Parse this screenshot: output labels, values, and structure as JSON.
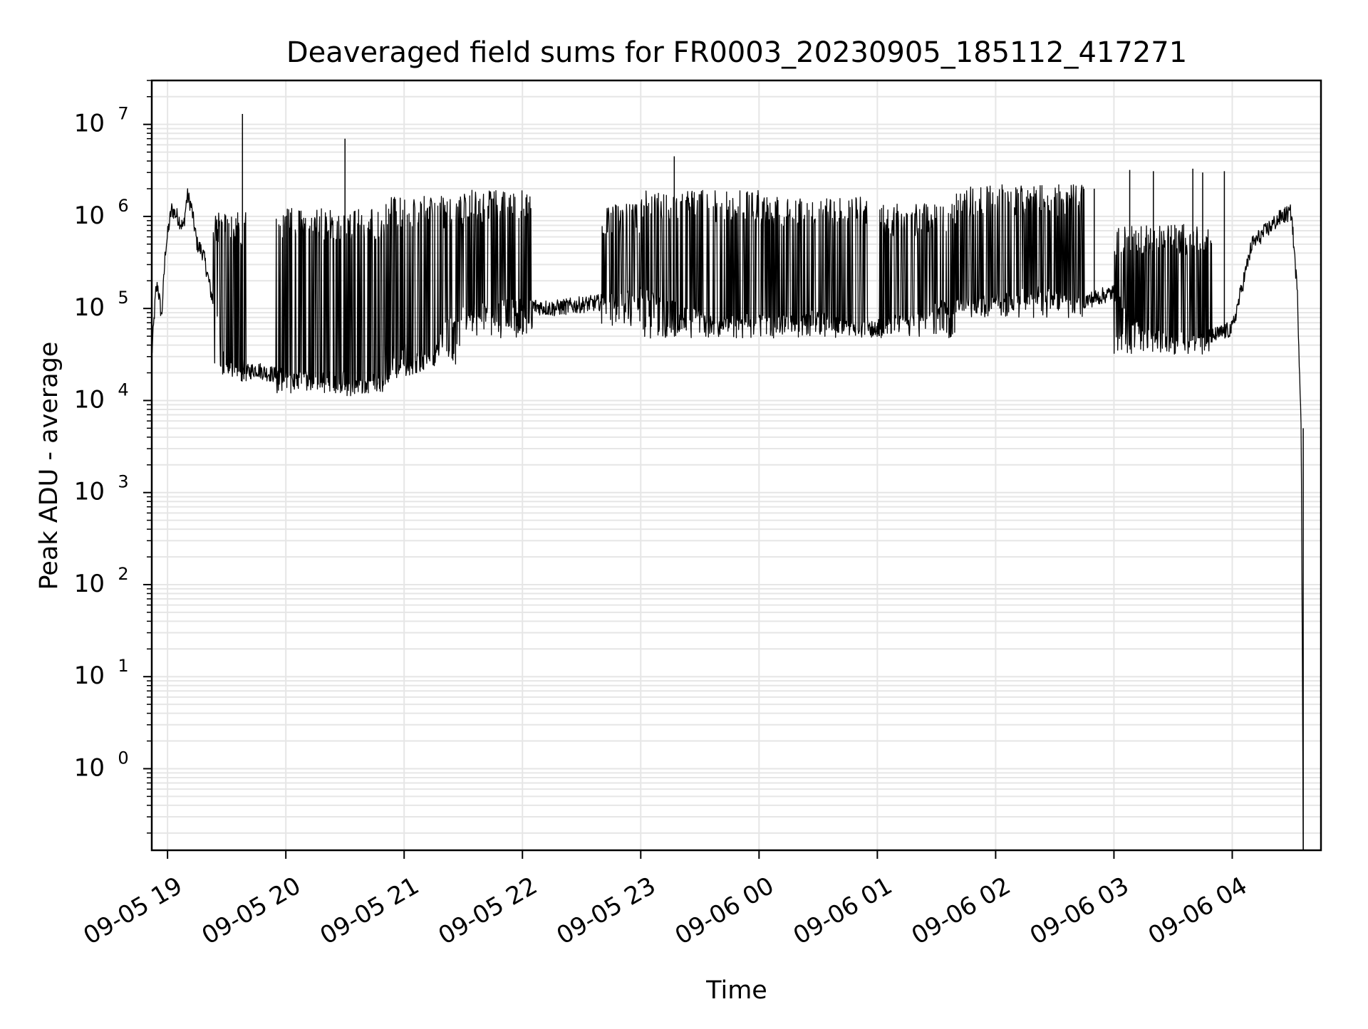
{
  "chart_data": {
    "type": "line",
    "title": "Deaveraged field sums for FR0003_20230905_185112_417271",
    "xlabel": "Time",
    "ylabel": "Peak ADU - average",
    "y_scale": "log",
    "ylim": [
      0.13,
      30000000
    ],
    "xlim": [
      "2023-09-05 18:52",
      "2023-09-06 04:45"
    ],
    "grid": true,
    "legend": "none",
    "colors": {
      "line": "#000000",
      "grid": "#e6e6e6",
      "axes": "#000000",
      "background": "#ffffff"
    },
    "x_ticks": [
      {
        "value": "2023-09-05 19:00",
        "label": "09-05 19"
      },
      {
        "value": "2023-09-05 20:00",
        "label": "09-05 20"
      },
      {
        "value": "2023-09-05 21:00",
        "label": "09-05 21"
      },
      {
        "value": "2023-09-05 22:00",
        "label": "09-05 22"
      },
      {
        "value": "2023-09-05 23:00",
        "label": "09-05 23"
      },
      {
        "value": "2023-09-06 00:00",
        "label": "09-06 00"
      },
      {
        "value": "2023-09-06 01:00",
        "label": "09-06 01"
      },
      {
        "value": "2023-09-06 02:00",
        "label": "09-06 02"
      },
      {
        "value": "2023-09-06 03:00",
        "label": "09-06 03"
      },
      {
        "value": "2023-09-06 04:00",
        "label": "09-06 04"
      }
    ],
    "y_ticks": [
      {
        "value": 1,
        "base": "10",
        "exp": "0"
      },
      {
        "value": 10,
        "base": "10",
        "exp": "1"
      },
      {
        "value": 100,
        "base": "10",
        "exp": "2"
      },
      {
        "value": 1000,
        "base": "10",
        "exp": "3"
      },
      {
        "value": 10000,
        "base": "10",
        "exp": "4"
      },
      {
        "value": 100000,
        "base": "10",
        "exp": "5"
      },
      {
        "value": 1000000,
        "base": "10",
        "exp": "6"
      },
      {
        "value": 10000000,
        "base": "10",
        "exp": "7"
      }
    ],
    "series": [
      {
        "x": [
          "2023-09-05 18:52",
          "2023-09-05 18:54",
          "2023-09-05 18:55",
          "2023-09-05 18:57",
          "2023-09-05 18:59",
          "2023-09-05 19:02",
          "2023-09-05 19:05",
          "2023-09-05 19:08",
          "2023-09-05 19:10",
          "2023-09-05 19:12",
          "2023-09-05 19:15",
          "2023-09-05 19:18",
          "2023-09-05 19:20",
          "2023-09-05 19:22",
          "2023-09-05 19:25",
          "2023-09-05 19:28",
          "2023-09-05 19:30",
          "2023-09-05 19:35",
          "2023-09-05 19:40",
          "2023-09-05 19:45",
          "2023-09-05 19:50",
          "2023-09-05 20:00",
          "2023-09-05 20:15",
          "2023-09-05 20:30",
          "2023-09-05 20:45",
          "2023-09-05 21:00",
          "2023-09-05 21:15",
          "2023-09-05 21:20",
          "2023-09-05 21:30",
          "2023-09-05 21:45",
          "2023-09-05 22:00",
          "2023-09-05 22:15",
          "2023-09-05 22:30",
          "2023-09-05 22:45",
          "2023-09-05 23:00",
          "2023-09-05 23:15",
          "2023-09-05 23:30",
          "2023-09-05 23:45",
          "2023-09-06 00:00",
          "2023-09-06 00:15",
          "2023-09-06 00:30",
          "2023-09-06 00:45",
          "2023-09-06 01:00",
          "2023-09-06 01:15",
          "2023-09-06 01:30",
          "2023-09-06 01:45",
          "2023-09-06 02:00",
          "2023-09-06 02:10",
          "2023-09-06 02:20",
          "2023-09-06 02:30",
          "2023-09-06 02:45",
          "2023-09-06 03:00",
          "2023-09-06 03:15",
          "2023-09-06 03:30",
          "2023-09-06 03:40",
          "2023-09-06 03:50",
          "2023-09-06 04:00",
          "2023-09-06 04:10",
          "2023-09-06 04:20",
          "2023-09-06 04:25",
          "2023-09-06 04:30",
          "2023-09-06 04:33",
          "2023-09-06 04:35",
          "2023-09-06 04:36"
        ],
        "y": [
          30000,
          150000,
          180000,
          80000,
          450000,
          1200000,
          1000000,
          750000,
          1700000,
          1300000,
          500000,
          400000,
          250000,
          150000,
          80000,
          40000,
          25000,
          18000,
          20000,
          22000,
          20000,
          18000,
          15000,
          13000,
          14000,
          22000,
          28000,
          60000,
          90000,
          100000,
          110000,
          100000,
          110000,
          120000,
          150000,
          100000,
          80000,
          70000,
          80000,
          70000,
          80000,
          60000,
          60000,
          70000,
          100000,
          110000,
          120000,
          130000,
          150000,
          130000,
          120000,
          150000,
          50000,
          50000,
          45000,
          50000,
          60000,
          500000,
          800000,
          1000000,
          1100000,
          150000,
          5000,
          0.13
        ]
      }
    ],
    "bands": [
      {
        "x_start": "2023-09-05 19:23",
        "x_end": "2023-09-05 19:40",
        "low": 20000,
        "high": 800000
      },
      {
        "x_start": "2023-09-05 19:55",
        "x_end": "2023-09-05 20:50",
        "low": 15000,
        "high": 900000
      },
      {
        "x_start": "2023-09-05 20:50",
        "x_end": "2023-09-05 21:30",
        "low": 30000,
        "high": 1200000
      },
      {
        "x_start": "2023-09-05 21:30",
        "x_end": "2023-09-05 22:05",
        "low": 60000,
        "high": 1400000
      },
      {
        "x_start": "2023-09-05 22:40",
        "x_end": "2023-09-05 23:00",
        "low": 80000,
        "high": 1000000
      },
      {
        "x_start": "2023-09-05 23:00",
        "x_end": "2023-09-06 00:00",
        "low": 60000,
        "high": 1400000
      },
      {
        "x_start": "2023-09-06 00:00",
        "x_end": "2023-09-06 00:55",
        "low": 60000,
        "high": 1200000
      },
      {
        "x_start": "2023-09-06 01:00",
        "x_end": "2023-09-06 01:40",
        "low": 60000,
        "high": 1000000
      },
      {
        "x_start": "2023-09-06 01:40",
        "x_end": "2023-09-06 02:45",
        "low": 100000,
        "high": 1600000
      },
      {
        "x_start": "2023-09-06 03:00",
        "x_end": "2023-09-06 03:50",
        "low": 40000,
        "high": 600000
      }
    ],
    "spikes": [
      {
        "x": "2023-09-05 19:38",
        "y": 13000000
      },
      {
        "x": "2023-09-05 20:30",
        "y": 7000000
      },
      {
        "x": "2023-09-05 23:17",
        "y": 4500000
      },
      {
        "x": "2023-09-06 02:50",
        "y": 2000000
      },
      {
        "x": "2023-09-06 03:08",
        "y": 3200000
      },
      {
        "x": "2023-09-06 03:20",
        "y": 3100000
      },
      {
        "x": "2023-09-06 03:40",
        "y": 3300000
      },
      {
        "x": "2023-09-06 03:45",
        "y": 3000000
      },
      {
        "x": "2023-09-06 03:56",
        "y": 3100000
      }
    ]
  }
}
